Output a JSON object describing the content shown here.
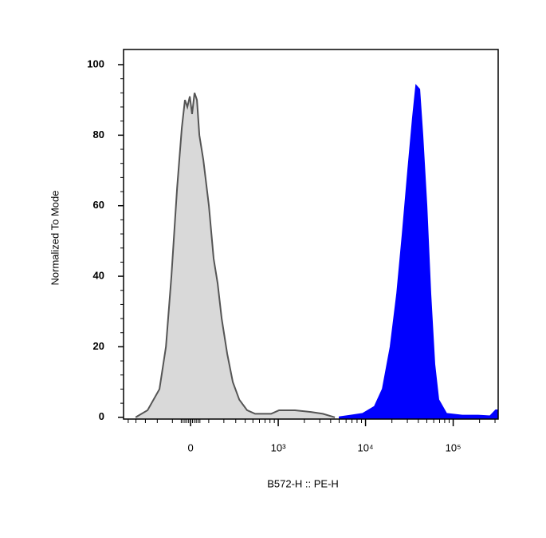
{
  "chart_data": {
    "type": "histogram-overlay",
    "x_label": "B572-H :: PE-H",
    "y_label": "Normalized To Mode",
    "xscale": "biexponential",
    "xlim": [
      -570,
      326000
    ],
    "xticks": [
      0,
      {
        "value": 1000,
        "label": "10³"
      },
      {
        "value": 10000,
        "label": "10⁴"
      },
      {
        "value": 100000,
        "label": "10⁵"
      }
    ],
    "xminorticks": [
      -500,
      -400,
      -300,
      -200,
      -100,
      -50,
      -40,
      -30,
      -20,
      -10,
      10,
      20,
      30,
      40,
      50,
      100,
      200,
      300,
      400,
      500,
      600,
      700,
      800,
      900,
      2000,
      3000,
      4000,
      5000,
      6000,
      7000,
      8000,
      9000,
      20000,
      30000,
      40000,
      50000,
      60000,
      70000,
      80000,
      90000,
      200000,
      300000
    ],
    "ylim": [
      -0.5,
      104.3
    ],
    "yticks": [
      0,
      20,
      40,
      60,
      80,
      100
    ],
    "series": [
      {
        "color": "#d9d9d9",
        "stroke": "#555555",
        "x": [
          -404,
          -280,
          -184,
          -140,
          -106,
          -73,
          -47,
          -30,
          -17,
          -4,
          8,
          21,
          34,
          47,
          69,
          101,
          130,
          156,
          184,
          226,
          273,
          335,
          423,
          532,
          825,
          1022,
          1561,
          2380,
          3260,
          4465
        ],
        "values": [
          0,
          2,
          8,
          20,
          40,
          65,
          82,
          90,
          88,
          91,
          86,
          92,
          90,
          80,
          73,
          60,
          45,
          38,
          28,
          18,
          10,
          5,
          2,
          1,
          1,
          2,
          2,
          1.5,
          1,
          0
        ]
      },
      {
        "color": "#0000ff",
        "stroke": "#0000ff",
        "x": [
          4960,
          6790,
          9290,
          12700,
          15700,
          19300,
          22900,
          26500,
          30600,
          34700,
          37800,
          41100,
          44600,
          49600,
          55000,
          61100,
          67800,
          83600,
          127000,
          193000,
          264000,
          306000,
          326000
        ],
        "values": [
          0,
          0.5,
          1,
          3,
          8,
          20,
          35,
          52,
          70,
          85,
          94,
          93,
          80,
          60,
          35,
          15,
          5,
          1,
          0.5,
          0.5,
          0.3,
          2,
          2
        ]
      }
    ]
  }
}
